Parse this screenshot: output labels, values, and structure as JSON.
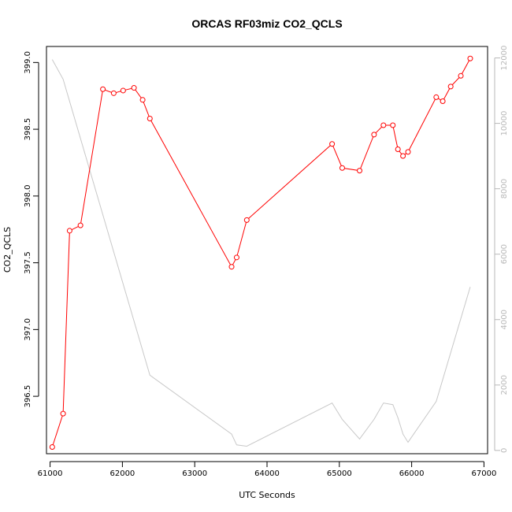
{
  "chart_data": {
    "type": "line",
    "title": "ORCAS RF03miz CO2_QCLS",
    "xlabel": "UTC Seconds",
    "ylabel": "CO2_QCLS",
    "xlim": [
      60950,
      67050
    ],
    "ylim": [
      396.07,
      399.12
    ],
    "y2lim": [
      -100,
      12350
    ],
    "x_ticks": [
      61000,
      62000,
      63000,
      64000,
      65000,
      66000,
      67000
    ],
    "y_ticks": [
      396.5,
      397.0,
      397.5,
      398.0,
      398.5,
      399.0
    ],
    "y_tick_labels": [
      "396.5",
      "397.0",
      "397.5",
      "398.0",
      "398.5",
      "399.0"
    ],
    "y2_ticks": [
      0,
      2000,
      4000,
      6000,
      8000,
      10000,
      12000
    ],
    "grid": false,
    "series": [
      {
        "axis": "left",
        "color": "#ff0000",
        "style": "line-with-open-circles",
        "x": [
          61030,
          61180,
          61270,
          61420,
          61730,
          61880,
          62010,
          62160,
          62280,
          62380,
          63510,
          63580,
          63720,
          64900,
          65040,
          65280,
          65480,
          65610,
          65740,
          65810,
          65880,
          65950,
          66340,
          66430,
          66540,
          66680,
          66810
        ],
        "y": [
          396.12,
          396.37,
          397.74,
          397.78,
          398.8,
          398.77,
          398.79,
          398.81,
          398.72,
          398.58,
          397.47,
          397.54,
          397.82,
          398.39,
          398.21,
          398.19,
          398.46,
          398.53,
          398.53,
          398.35,
          398.3,
          398.33,
          398.74,
          398.71,
          398.82,
          398.9,
          399.03
        ]
      },
      {
        "axis": "right",
        "color": "#c8c8c8",
        "style": "line",
        "x": [
          61030,
          61180,
          62380,
          63510,
          63580,
          63720,
          64900,
          65040,
          65280,
          65480,
          65610,
          65740,
          65810,
          65880,
          65950,
          66340,
          66810
        ],
        "y": [
          11950,
          11350,
          2300,
          500,
          170,
          130,
          1450,
          950,
          350,
          950,
          1450,
          1400,
          1000,
          500,
          250,
          1500,
          5000
        ]
      }
    ]
  }
}
